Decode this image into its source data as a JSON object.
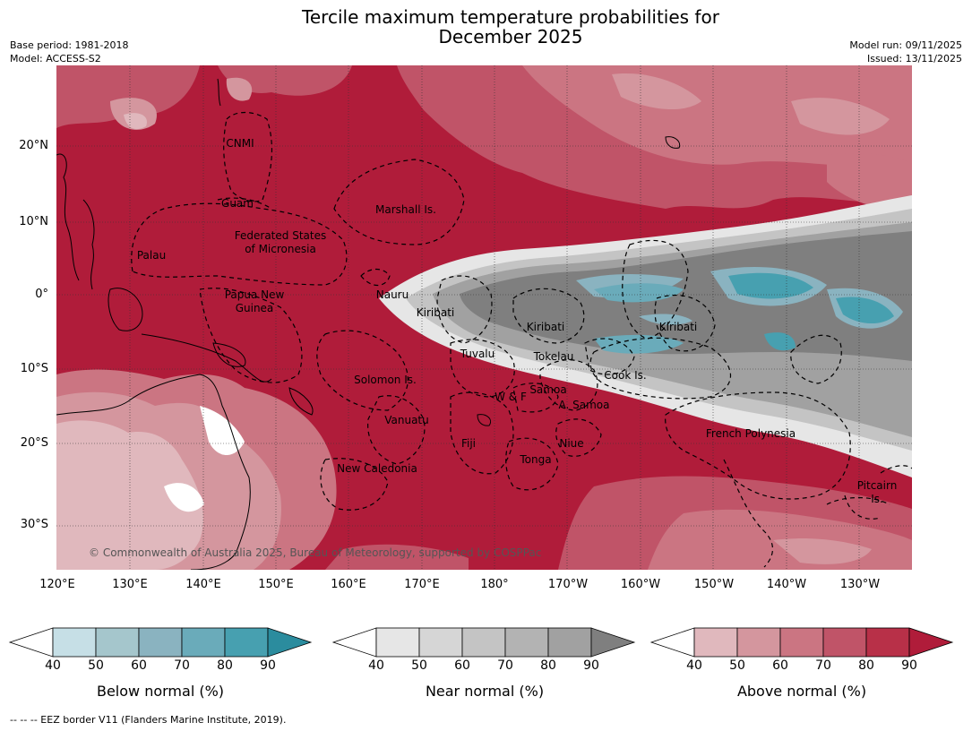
{
  "title_line1": "Tercile maximum temperature probabilities for",
  "title_line2": "December 2025",
  "meta": {
    "base_period": "Base period: 1981-2018",
    "model": "Model: ACCESS-S2",
    "model_run": "Model run: 09/11/2025",
    "issued": "Issued: 13/11/2025"
  },
  "map": {
    "lat_labels": [
      "20°N",
      "10°N",
      "0°",
      "10°S",
      "20°S",
      "30°S"
    ],
    "lon_labels": [
      "120°E",
      "130°E",
      "140°E",
      "150°E",
      "160°E",
      "170°E",
      "180°",
      "170°W",
      "160°W",
      "150°W",
      "140°W",
      "130°W"
    ],
    "regions": [
      "CNMI",
      "Guam",
      "Marshall Is.",
      "Federated States",
      "of Micronesia",
      "Palau",
      "Papua New",
      "Guinea",
      "Nauru",
      "Kiribati",
      "Kiribati",
      "Kiribati",
      "Tuvalu",
      "Tokelau",
      "Solomon Is.",
      "Cook Is.",
      "W & F",
      "Samoa",
      "A. Samoa",
      "Vanuatu",
      "Fiji",
      "Niue",
      "Tonga",
      "French Polynesia",
      "New Caledonia",
      "Pitcairn",
      "Is."
    ],
    "copyright": "© Commonwealth of Australia 2025, Bureau of Meteorology, supported by COSPPac"
  },
  "colorbars": [
    {
      "label": "Below normal (%)",
      "ticks": [
        "40",
        "50",
        "60",
        "70",
        "80",
        "90"
      ],
      "colors": [
        "#ffffff",
        "#c6dfe6",
        "#a5c6cc",
        "#8ab3c0",
        "#6aabba",
        "#47a0b0",
        "#2b8c9e"
      ]
    },
    {
      "label": "Near normal (%)",
      "ticks": [
        "40",
        "50",
        "60",
        "70",
        "80",
        "90"
      ],
      "colors": [
        "#ffffff",
        "#e6e6e6",
        "#d6d6d6",
        "#c4c4c4",
        "#b3b3b3",
        "#a1a1a1",
        "#7f7f7f"
      ]
    },
    {
      "label": "Above normal (%)",
      "ticks": [
        "40",
        "50",
        "60",
        "70",
        "80",
        "90"
      ],
      "colors": [
        "#ffffff",
        "#e0b8bd",
        "#d4969e",
        "#cb7582",
        "#c05468",
        "#b83048",
        "#b01c3a"
      ]
    }
  ],
  "footer": "--  --  -- EEZ border V11 (Flanders Marine Institute, 2019)."
}
